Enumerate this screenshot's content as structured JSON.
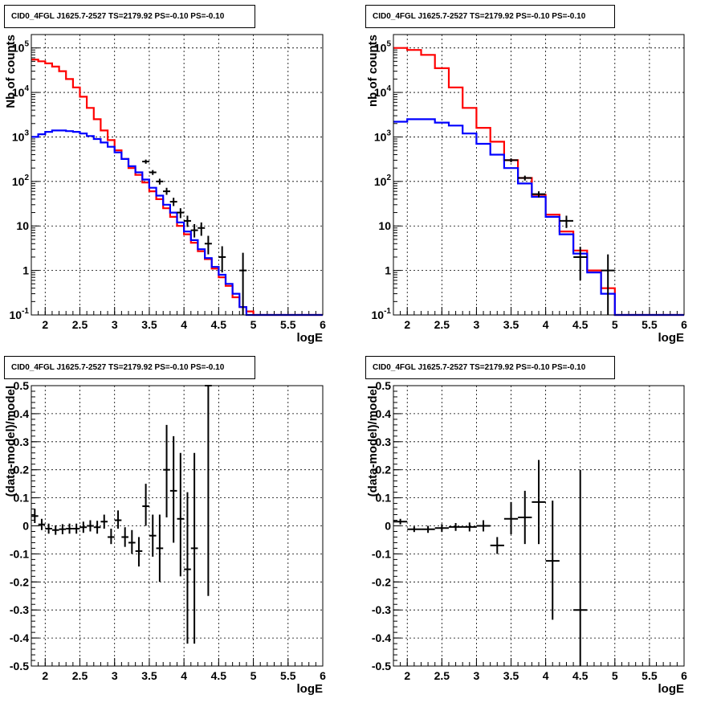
{
  "chart_data": [
    {
      "type": "line",
      "panel": "top-left",
      "title": "CID0_4FGL J1625.7-2527 TS=2179.92 PS=-0.10 PS=-0.10",
      "xlabel": "logE",
      "ylabel": "Nb of counts",
      "xlim": [
        1.8,
        6.0
      ],
      "ylim": [
        0.1,
        200000
      ],
      "log_y": true,
      "grid": true,
      "x_ticks": [
        "2",
        "2.5",
        "3",
        "3.5",
        "4",
        "4.5",
        "5",
        "5.5",
        "6"
      ],
      "y_ticks": [
        "10^-1",
        "1",
        "10",
        "10^2",
        "10^3",
        "10^4",
        "10^5"
      ],
      "bin_edges": [
        1.8,
        1.9,
        2.0,
        2.1,
        2.2,
        2.3,
        2.4,
        2.5,
        2.6,
        2.7,
        2.8,
        2.9,
        3.0,
        3.1,
        3.2,
        3.3,
        3.4,
        3.5,
        3.6,
        3.7,
        3.8,
        3.9,
        4.0,
        4.1,
        4.2,
        4.3,
        4.4,
        4.5,
        4.6,
        4.7,
        4.8,
        4.9,
        5.0,
        5.1,
        5.2,
        5.3,
        5.4,
        5.5,
        5.6,
        5.7,
        5.8,
        5.9,
        6.0
      ],
      "series": [
        {
          "color": "#ff0000",
          "values": [
            55000,
            50000,
            45000,
            38000,
            30000,
            20000,
            13000,
            8000,
            4500,
            2500,
            1400,
            850,
            500,
            320,
            200,
            140,
            95,
            60,
            40,
            25,
            16,
            10,
            6.5,
            4.2,
            2.7,
            1.8,
            1.1,
            0.7,
            0.45,
            0.25,
            0.15,
            0.12,
            0.1,
            0.1,
            0.1,
            0.1,
            0.1,
            0.1,
            0.1,
            0.1,
            0.1,
            0.1
          ]
        },
        {
          "color": "#0000ff",
          "values": [
            1000,
            1150,
            1300,
            1400,
            1400,
            1350,
            1300,
            1200,
            1050,
            900,
            750,
            600,
            450,
            320,
            220,
            160,
            110,
            72,
            48,
            30,
            20,
            12,
            7.5,
            4.8,
            3.0,
            1.9,
            1.2,
            0.8,
            0.5,
            0.3,
            0.15,
            0.1,
            0.1,
            0.1,
            0.1,
            0.1,
            0.1,
            0.1,
            0.1,
            0.1,
            0.1,
            0.1
          ]
        }
      ],
      "points": [
        {
          "x": 3.45,
          "y": 280,
          "lo": 250,
          "hi": 310
        },
        {
          "x": 3.55,
          "y": 160,
          "lo": 140,
          "hi": 180
        },
        {
          "x": 3.65,
          "y": 100,
          "lo": 85,
          "hi": 115
        },
        {
          "x": 3.75,
          "y": 60,
          "lo": 50,
          "hi": 72
        },
        {
          "x": 3.85,
          "y": 35,
          "lo": 28,
          "hi": 43
        },
        {
          "x": 3.95,
          "y": 20,
          "lo": 15,
          "hi": 25
        },
        {
          "x": 4.05,
          "y": 13,
          "lo": 9.5,
          "hi": 17
        },
        {
          "x": 4.15,
          "y": 8,
          "lo": 5.5,
          "hi": 11
        },
        {
          "x": 4.25,
          "y": 9,
          "lo": 6,
          "hi": 12
        },
        {
          "x": 4.35,
          "y": 4,
          "lo": 2.3,
          "hi": 6
        },
        {
          "x": 4.55,
          "y": 2,
          "lo": 0.9,
          "hi": 3.5
        },
        {
          "x": 4.85,
          "y": 1,
          "lo": 0.1,
          "hi": 2.5
        }
      ]
    },
    {
      "type": "line",
      "panel": "top-right",
      "title": "CID0_4FGL J1625.7-2527 TS=2179.92 PS=-0.10 PS=-0.10",
      "xlabel": "logE",
      "ylabel": "nb of counts",
      "xlim": [
        1.8,
        6.0
      ],
      "ylim": [
        0.1,
        200000
      ],
      "log_y": true,
      "grid": true,
      "x_ticks": [
        "2",
        "2.5",
        "3",
        "3.5",
        "4",
        "4.5",
        "5",
        "5.5",
        "6"
      ],
      "y_ticks": [
        "10^-1",
        "1",
        "10",
        "10^2",
        "10^3",
        "10^4",
        "10^5"
      ],
      "bin_edges": [
        1.8,
        2.0,
        2.2,
        2.4,
        2.6,
        2.8,
        3.0,
        3.2,
        3.4,
        3.6,
        3.8,
        4.0,
        4.2,
        4.4,
        4.6,
        4.8,
        5.0,
        5.2,
        5.4,
        5.6,
        5.8,
        6.0
      ],
      "series": [
        {
          "color": "#ff0000",
          "values": [
            100000,
            90000,
            70000,
            35000,
            13000,
            4500,
            1600,
            780,
            300,
            120,
            50,
            18,
            7.5,
            2.8,
            1.0,
            0.4,
            0.1,
            0.1,
            0.1,
            0.1,
            0.1
          ]
        },
        {
          "color": "#0000ff",
          "values": [
            2200,
            2500,
            2500,
            2100,
            1800,
            1200,
            700,
            400,
            200,
            90,
            45,
            16,
            6.5,
            2.4,
            0.9,
            0.3,
            0.1,
            0.1,
            0.1,
            0.1,
            0.1
          ]
        }
      ],
      "points": [
        {
          "x": 3.5,
          "y": 300,
          "lo": 270,
          "hi": 330
        },
        {
          "x": 3.7,
          "y": 120,
          "lo": 105,
          "hi": 135
        },
        {
          "x": 3.9,
          "y": 52,
          "lo": 44,
          "hi": 60
        },
        {
          "x": 4.3,
          "y": 13,
          "lo": 9,
          "hi": 17
        },
        {
          "x": 4.5,
          "y": 2,
          "lo": 0.6,
          "hi": 3.4
        },
        {
          "x": 4.9,
          "y": 1,
          "lo": 0.1,
          "hi": 2.3
        }
      ]
    },
    {
      "type": "scatter",
      "panel": "bottom-left",
      "title": "CID0_4FGL J1625.7-2527 TS=2179.92 PS=-0.10 PS=-0.10",
      "xlabel": "logE",
      "ylabel": "(data-model)/model",
      "xlim": [
        1.8,
        6.0
      ],
      "ylim": [
        -0.5,
        0.5
      ],
      "grid": true,
      "x_ticks": [
        "2",
        "2.5",
        "3",
        "3.5",
        "4",
        "4.5",
        "5",
        "5.5",
        "6"
      ],
      "y_ticks": [
        "-0.5",
        "-0.4",
        "-0.3",
        "-0.2",
        "-0.1",
        "0",
        "0.1",
        "0.2",
        "0.3",
        "0.4",
        "0.5"
      ],
      "points": [
        {
          "x": 1.85,
          "y": 0.035,
          "lo": 0.01,
          "hi": 0.06,
          "xerr": 0.05
        },
        {
          "x": 1.95,
          "y": 0.005,
          "lo": -0.015,
          "hi": 0.025,
          "xerr": 0.05
        },
        {
          "x": 2.05,
          "y": -0.01,
          "lo": -0.028,
          "hi": 0.008,
          "xerr": 0.05
        },
        {
          "x": 2.15,
          "y": -0.015,
          "lo": -0.032,
          "hi": 0.002,
          "xerr": 0.05
        },
        {
          "x": 2.25,
          "y": -0.012,
          "lo": -0.03,
          "hi": 0.006,
          "xerr": 0.05
        },
        {
          "x": 2.35,
          "y": -0.01,
          "lo": -0.028,
          "hi": 0.008,
          "xerr": 0.05
        },
        {
          "x": 2.45,
          "y": -0.01,
          "lo": -0.028,
          "hi": 0.008,
          "xerr": 0.05
        },
        {
          "x": 2.55,
          "y": -0.005,
          "lo": -0.025,
          "hi": 0.015,
          "xerr": 0.05
        },
        {
          "x": 2.65,
          "y": 0.0,
          "lo": -0.02,
          "hi": 0.02,
          "xerr": 0.05
        },
        {
          "x": 2.75,
          "y": -0.005,
          "lo": -0.028,
          "hi": 0.018,
          "xerr": 0.05
        },
        {
          "x": 2.85,
          "y": 0.015,
          "lo": -0.01,
          "hi": 0.04,
          "xerr": 0.05
        },
        {
          "x": 2.95,
          "y": -0.04,
          "lo": -0.065,
          "hi": -0.01,
          "xerr": 0.05
        },
        {
          "x": 3.05,
          "y": 0.02,
          "lo": -0.01,
          "hi": 0.055,
          "xerr": 0.05
        },
        {
          "x": 3.15,
          "y": -0.04,
          "lo": -0.075,
          "hi": -0.005,
          "xerr": 0.05
        },
        {
          "x": 3.25,
          "y": -0.06,
          "lo": -0.1,
          "hi": -0.015,
          "xerr": 0.05
        },
        {
          "x": 3.35,
          "y": -0.09,
          "lo": -0.145,
          "hi": -0.04,
          "xerr": 0.05
        },
        {
          "x": 3.45,
          "y": 0.07,
          "lo": 0.0,
          "hi": 0.15,
          "xerr": 0.05
        },
        {
          "x": 3.55,
          "y": -0.035,
          "lo": -0.11,
          "hi": 0.04,
          "xerr": 0.05
        },
        {
          "x": 3.65,
          "y": -0.08,
          "lo": -0.2,
          "hi": 0.04,
          "xerr": 0.05
        },
        {
          "x": 3.75,
          "y": 0.2,
          "lo": 0.03,
          "hi": 0.36,
          "xerr": 0.05
        },
        {
          "x": 3.85,
          "y": 0.125,
          "lo": -0.06,
          "hi": 0.32,
          "xerr": 0.05
        },
        {
          "x": 3.95,
          "y": 0.025,
          "lo": -0.18,
          "hi": 0.26,
          "xerr": 0.05
        },
        {
          "x": 4.05,
          "y": -0.155,
          "lo": -0.42,
          "hi": 0.12,
          "xerr": 0.05
        },
        {
          "x": 4.15,
          "y": -0.08,
          "lo": -0.42,
          "hi": 0.26,
          "xerr": 0.05
        },
        {
          "x": 4.35,
          "y": 0.5,
          "lo": -0.25,
          "hi": 0.5,
          "xerr": 0.05
        }
      ]
    },
    {
      "type": "scatter",
      "panel": "bottom-right",
      "title": "CID0_4FGL J1625.7-2527 TS=2179.92 PS=-0.10 PS=-0.10",
      "xlabel": "logE",
      "ylabel": "(data-model)/model",
      "xlim": [
        1.8,
        6.0
      ],
      "ylim": [
        -0.5,
        0.5
      ],
      "grid": true,
      "x_ticks": [
        "2",
        "2.5",
        "3",
        "3.5",
        "4",
        "4.5",
        "5",
        "5.5",
        "6"
      ],
      "y_ticks": [
        "-0.5",
        "-0.4",
        "-0.3",
        "-0.2",
        "-0.1",
        "0",
        "0.1",
        "0.2",
        "0.3",
        "0.4",
        "0.5"
      ],
      "points": [
        {
          "x": 1.9,
          "y": 0.015,
          "lo": 0.005,
          "hi": 0.025,
          "xerr": 0.1
        },
        {
          "x": 2.1,
          "y": -0.012,
          "lo": -0.022,
          "hi": -0.002,
          "xerr": 0.1
        },
        {
          "x": 2.3,
          "y": -0.012,
          "lo": -0.025,
          "hi": 0.0,
          "xerr": 0.1
        },
        {
          "x": 2.5,
          "y": -0.008,
          "lo": -0.022,
          "hi": 0.006,
          "xerr": 0.1
        },
        {
          "x": 2.7,
          "y": -0.004,
          "lo": -0.018,
          "hi": 0.01,
          "xerr": 0.1
        },
        {
          "x": 2.9,
          "y": -0.004,
          "lo": -0.02,
          "hi": 0.012,
          "xerr": 0.1
        },
        {
          "x": 3.1,
          "y": 0.0,
          "lo": -0.02,
          "hi": 0.02,
          "xerr": 0.1
        },
        {
          "x": 3.3,
          "y": -0.07,
          "lo": -0.1,
          "hi": -0.04,
          "xerr": 0.1
        },
        {
          "x": 3.5,
          "y": 0.025,
          "lo": -0.03,
          "hi": 0.085,
          "xerr": 0.1
        },
        {
          "x": 3.7,
          "y": 0.03,
          "lo": -0.065,
          "hi": 0.125,
          "xerr": 0.1
        },
        {
          "x": 3.9,
          "y": 0.085,
          "lo": -0.065,
          "hi": 0.235,
          "xerr": 0.1
        },
        {
          "x": 4.1,
          "y": -0.125,
          "lo": -0.335,
          "hi": 0.09,
          "xerr": 0.1
        },
        {
          "x": 4.5,
          "y": -0.3,
          "lo": -0.5,
          "hi": 0.2,
          "xerr": 0.1
        }
      ]
    }
  ]
}
